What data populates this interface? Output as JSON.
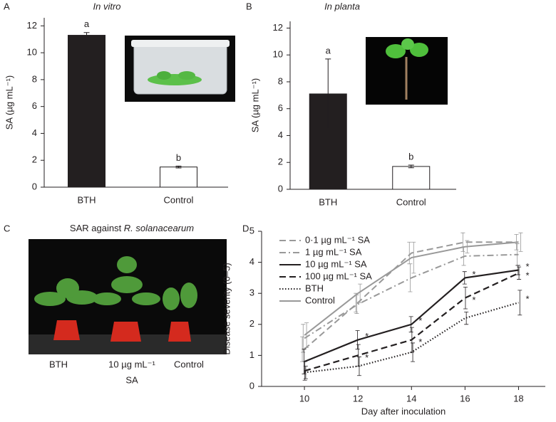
{
  "chart_data": [
    {
      "type": "bar",
      "label": "A",
      "title": "In vitro",
      "y_label": "SA (µg mL⁻¹)",
      "categories": [
        "BTH",
        "Control"
      ],
      "values": [
        11.3,
        1.5
      ],
      "errors": [
        0.2,
        0.07
      ],
      "annotations": [
        "a",
        "b"
      ],
      "colors": [
        "#231f20",
        "#ffffff"
      ],
      "ylim": [
        0,
        12.6
      ],
      "yticks": [
        0,
        2,
        4,
        6,
        8,
        10,
        12
      ]
    },
    {
      "type": "bar",
      "label": "B",
      "title": "In planta",
      "y_label": "SA (µg mL⁻¹)",
      "categories": [
        "BTH",
        "Control"
      ],
      "values": [
        7.1,
        1.7
      ],
      "errors": [
        2.6,
        0.1
      ],
      "annotations": [
        "a",
        "b"
      ],
      "colors": [
        "#231f20",
        "#ffffff"
      ],
      "ylim": [
        0,
        12.5
      ],
      "yticks": [
        0,
        2,
        4,
        6,
        8,
        10,
        12
      ]
    },
    {
      "type": "line",
      "label": "D",
      "x_label": "Day after inoculation",
      "y_label": "Disease severity (0–5)",
      "x": [
        10,
        12,
        14,
        16,
        18
      ],
      "xlim": [
        8.4,
        19
      ],
      "xticks": [
        10,
        12,
        14,
        16,
        18
      ],
      "ylim": [
        0,
        5
      ],
      "yticks": [
        0,
        1,
        2,
        3,
        4,
        5
      ],
      "series": [
        {
          "name": "0·1 µg mL⁻¹ SA",
          "color": "#999999",
          "dash": "dashed",
          "values": [
            1.2,
            2.7,
            4.3,
            4.65,
            4.65
          ],
          "errors": [
            0.4,
            0.3,
            0.35,
            0.3,
            0.25
          ],
          "annotations": [
            null,
            null,
            null,
            null,
            null
          ]
        },
        {
          "name": "1 µg mL⁻¹ SA",
          "color": "#999999",
          "dash": "dashdot",
          "values": [
            1.55,
            2.65,
            3.5,
            4.2,
            4.25
          ],
          "errors": [
            0.45,
            0.3,
            0.45,
            0.3,
            0.35
          ],
          "annotations": [
            null,
            null,
            null,
            null,
            null
          ]
        },
        {
          "name": "10 µg mL⁻¹ SA",
          "color": "#231f20",
          "dash": "solid",
          "values": [
            0.8,
            1.5,
            2.0,
            3.5,
            3.75
          ],
          "errors": [
            0.4,
            0.3,
            0.25,
            0.2,
            0.15
          ],
          "annotations": [
            null,
            "*",
            "*",
            "*",
            "*"
          ]
        },
        {
          "name": "100 µg mL⁻¹ SA",
          "color": "#231f20",
          "dash": "dashed",
          "values": [
            0.5,
            1.0,
            1.5,
            2.85,
            3.65
          ],
          "errors": [
            0.3,
            0.35,
            0.4,
            0.35,
            0.2
          ],
          "annotations": [
            null,
            "*",
            "*",
            "*",
            "*"
          ]
        },
        {
          "name": "BTH",
          "color": "#231f20",
          "dash": "dotted",
          "values": [
            0.45,
            0.65,
            1.1,
            2.2,
            2.7
          ],
          "errors": [
            0.2,
            0.3,
            0.3,
            0.2,
            0.4
          ],
          "annotations": [
            null,
            null,
            null,
            null,
            "*"
          ]
        },
        {
          "name": "Control",
          "color": "#999999",
          "dash": "solid",
          "values": [
            1.65,
            3.0,
            4.15,
            4.5,
            4.65
          ],
          "errors": [
            0.4,
            0.3,
            0.5,
            0.2,
            0.3
          ],
          "annotations": [
            null,
            null,
            null,
            null,
            null
          ]
        }
      ]
    }
  ],
  "photo_panel": {
    "label": "C",
    "title_plain": "SAR against ",
    "title_italic": "R. solanacearum",
    "labels": [
      "BTH",
      "10 µg mL⁻¹",
      "Control"
    ],
    "sublabel": "SA"
  }
}
